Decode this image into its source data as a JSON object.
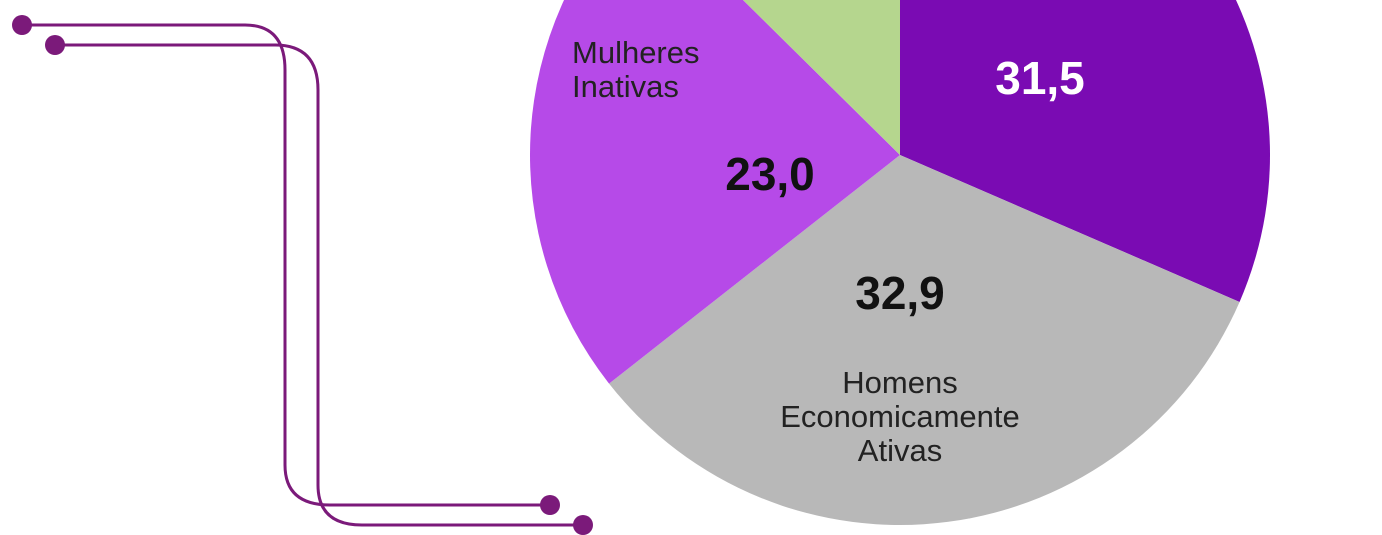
{
  "chart_data": {
    "type": "pie",
    "categories": [
      null,
      "Homens Economicamente Ativas",
      "Mulheres Inativas",
      null
    ],
    "values": [
      31.5,
      32.9,
      23.0,
      12.6
    ],
    "value_labels": [
      "31,5",
      "32,9",
      "23,0",
      null
    ],
    "colors": [
      "#7a0bb3",
      "#b8b8b8",
      "#b64ae8",
      "#b5d68e"
    ],
    "value_label_colors": [
      "#ffffff",
      "#111111",
      "#111111",
      "#111111"
    ]
  }
}
